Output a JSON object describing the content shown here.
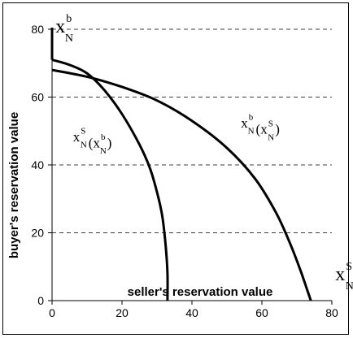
{
  "chart_data": {
    "type": "line",
    "ylabel": "buyer's reservation value",
    "xlabel": "seller's reservation value",
    "xlim": [
      0,
      80
    ],
    "ylim": [
      0,
      80
    ],
    "x_ticks": [
      "0",
      "20",
      "40",
      "60",
      "80"
    ],
    "y_ticks": [
      "0",
      "20",
      "40",
      "60",
      "80"
    ],
    "y_grid": true,
    "series": [
      {
        "points": [
          [
            0,
            71
          ],
          [
            5,
            69.5
          ],
          [
            10,
            67
          ],
          [
            15,
            62
          ],
          [
            20,
            55
          ],
          [
            25,
            46
          ],
          [
            28,
            39
          ],
          [
            30,
            32
          ],
          [
            31.5,
            25
          ],
          [
            32.5,
            16
          ],
          [
            33,
            8
          ],
          [
            33,
            0
          ]
        ]
      },
      {
        "points": [
          [
            0,
            68
          ],
          [
            10,
            66
          ],
          [
            20,
            63
          ],
          [
            30,
            59
          ],
          [
            40,
            53
          ],
          [
            50,
            45
          ],
          [
            58,
            36
          ],
          [
            64,
            26
          ],
          [
            68,
            17
          ],
          [
            71,
            9
          ],
          [
            73,
            3
          ],
          [
            74,
            0
          ]
        ]
      }
    ],
    "annotations": [
      {
        "id": "xbn",
        "main": "x",
        "sup": "b",
        "sub": "N",
        "at": [
          1,
          79
        ]
      },
      {
        "id": "xsn",
        "main": "x",
        "sup": "S",
        "sub": "N",
        "at": [
          81,
          6
        ]
      },
      {
        "id": "xsn-of-xbn",
        "main": "x",
        "sub": "N",
        "sup": "S",
        "inner": "x",
        "inner_sup": "b",
        "inner_sub": "N",
        "at": [
          6,
          47
        ]
      },
      {
        "id": "xbn-of-xsn",
        "main": "x",
        "sub": "N",
        "sup": "b",
        "inner": "x",
        "inner_sup": "S",
        "inner_sub": "N",
        "at": [
          54,
          51
        ]
      }
    ]
  }
}
